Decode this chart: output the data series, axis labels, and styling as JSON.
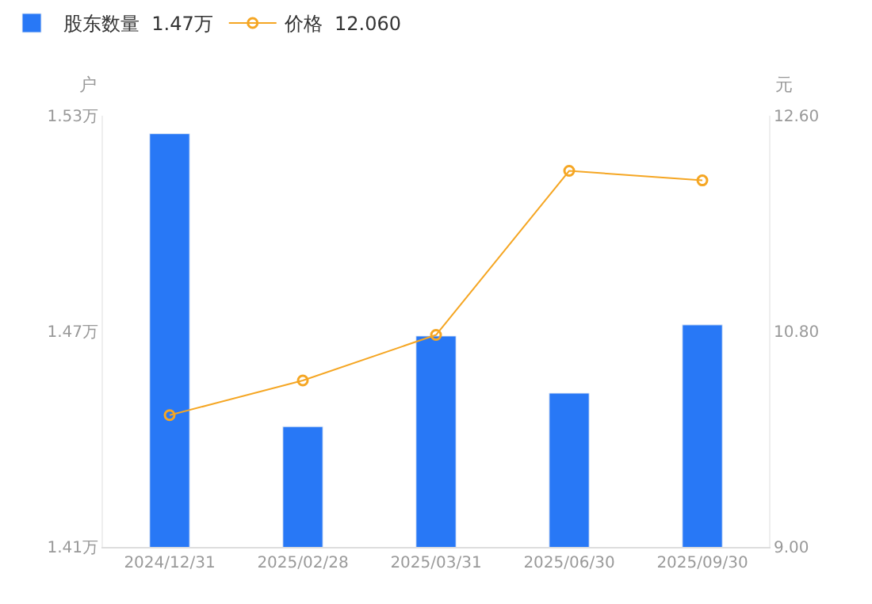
{
  "chart_data": {
    "type": "bar",
    "categories": [
      "2024/12/31",
      "2025/02/28",
      "2025/03/31",
      "2025/06/30",
      "2025/09/30"
    ],
    "ylabel": "户",
    "y2label": "元",
    "series": [
      {
        "name": "股东数量  1.47万",
        "color": "#2878f6",
        "values": [
          1.525,
          1.4435,
          1.4687,
          1.4528,
          1.4718
        ]
      },
      {
        "name": "价格  12.060",
        "type": "line",
        "axis": "y2",
        "color": "#f5a623",
        "marker": "circle",
        "values": [
          10.1,
          10.39,
          10.77,
          12.14,
          12.06
        ]
      }
    ],
    "ylim": [
      1.41,
      1.53
    ],
    "yticks": [
      {
        "value": 1.41,
        "label": "1.41万"
      },
      {
        "value": 1.47,
        "label": "1.47万"
      },
      {
        "value": 1.53,
        "label": "1.53万"
      }
    ],
    "y2lim": [
      9.0,
      12.6
    ],
    "y2ticks": [
      {
        "value": 9.0,
        "label": "9.00"
      },
      {
        "value": 10.8,
        "label": "10.80"
      },
      {
        "value": 12.6,
        "label": "12.60"
      }
    ],
    "grid": false,
    "legend": "top left"
  }
}
